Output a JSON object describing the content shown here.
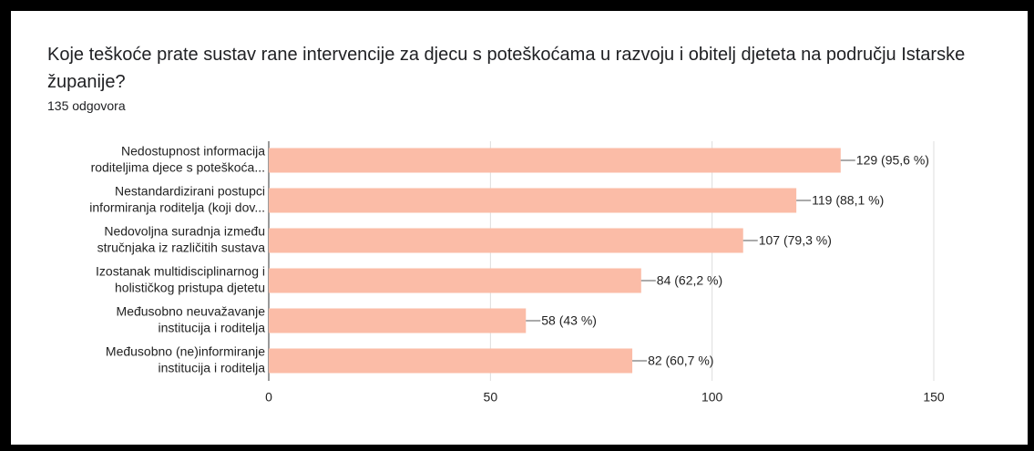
{
  "chart_data": {
    "type": "barh",
    "title": "Koje teškoće prate sustav rane intervencije za djecu s poteškoćama u razvoju i obitelj djeteta na području Istarske županije?",
    "subtitle": "135 odgovora",
    "categories": [
      [
        "Nedostupnost informacija",
        "roditeljima djece s poteškoća..."
      ],
      [
        "Nestandardizirani postupci",
        "informiranja roditelja (koji dov..."
      ],
      [
        "Nedovoljna suradnja između",
        "stručnjaka iz različitih sustava"
      ],
      [
        "Izostanak multidisciplinarnog i",
        "holističkog pristupa djetetu"
      ],
      [
        "Međusobno neuvažavanje",
        "institucija i roditelja"
      ],
      [
        "Međusobno (ne)informiranje",
        "institucija i roditelja"
      ]
    ],
    "values": [
      129,
      119,
      107,
      84,
      58,
      82
    ],
    "value_labels": [
      "129 (95,6 %)",
      "119 (88,1 %)",
      "107 (79,3 %)",
      "84 (62,2 %)",
      "58 (43 %)",
      "82 (60,7 %)"
    ],
    "color": "#fbbca7",
    "xlim": [
      0,
      150
    ],
    "xticks": [
      0,
      50,
      100,
      150
    ],
    "grid": true
  }
}
